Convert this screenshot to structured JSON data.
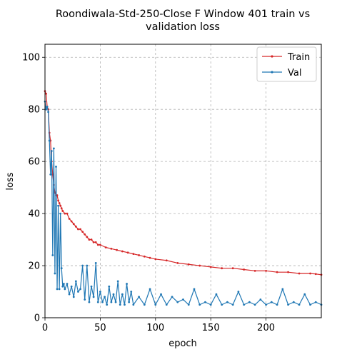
{
  "chart_data": {
    "type": "line",
    "title_lines": [
      "Roondiwala-Std-250-Close F Window 401 train vs",
      "validation loss"
    ],
    "xlabel": "epoch",
    "ylabel": "loss",
    "xlim": [
      0,
      250
    ],
    "ylim": [
      0,
      105
    ],
    "xticks": [
      0,
      50,
      100,
      150,
      200
    ],
    "yticks": [
      0,
      20,
      40,
      60,
      80,
      100
    ],
    "grid": true,
    "legend_position": "top-right",
    "series": [
      {
        "name": "Train",
        "color": "#d62728",
        "points": [
          [
            0,
            87
          ],
          [
            1,
            86
          ],
          [
            2,
            81
          ],
          [
            3,
            80
          ],
          [
            4,
            71
          ],
          [
            5,
            68
          ],
          [
            6,
            60
          ],
          [
            7,
            55
          ],
          [
            8,
            51
          ],
          [
            9,
            48
          ],
          [
            10,
            47
          ],
          [
            11,
            47
          ],
          [
            12,
            45
          ],
          [
            13,
            44
          ],
          [
            14,
            43
          ],
          [
            15,
            42
          ],
          [
            16,
            41
          ],
          [
            18,
            40
          ],
          [
            20,
            40
          ],
          [
            22,
            38
          ],
          [
            24,
            37
          ],
          [
            26,
            36
          ],
          [
            28,
            35
          ],
          [
            30,
            34
          ],
          [
            32,
            34
          ],
          [
            34,
            33
          ],
          [
            36,
            32
          ],
          [
            38,
            31
          ],
          [
            40,
            30
          ],
          [
            42,
            30
          ],
          [
            44,
            29
          ],
          [
            46,
            29
          ],
          [
            48,
            28
          ],
          [
            50,
            28
          ],
          [
            55,
            27
          ],
          [
            60,
            26.5
          ],
          [
            65,
            26
          ],
          [
            70,
            25.5
          ],
          [
            75,
            25
          ],
          [
            80,
            24.5
          ],
          [
            85,
            24
          ],
          [
            90,
            23.5
          ],
          [
            95,
            23
          ],
          [
            100,
            22.5
          ],
          [
            110,
            22
          ],
          [
            120,
            21
          ],
          [
            130,
            20.5
          ],
          [
            140,
            20
          ],
          [
            150,
            19.5
          ],
          [
            160,
            19
          ],
          [
            170,
            19
          ],
          [
            180,
            18.5
          ],
          [
            190,
            18
          ],
          [
            200,
            18
          ],
          [
            210,
            17.5
          ],
          [
            220,
            17.5
          ],
          [
            230,
            17
          ],
          [
            240,
            17
          ],
          [
            245,
            16.8
          ],
          [
            250,
            16.5
          ]
        ]
      },
      {
        "name": "Val",
        "color": "#1f77b4",
        "points": [
          [
            0,
            83
          ],
          [
            1,
            80
          ],
          [
            2,
            81
          ],
          [
            3,
            79
          ],
          [
            4,
            68
          ],
          [
            5,
            55
          ],
          [
            6,
            64
          ],
          [
            7,
            24
          ],
          [
            8,
            65
          ],
          [
            9,
            17
          ],
          [
            10,
            58
          ],
          [
            11,
            11
          ],
          [
            12,
            43
          ],
          [
            13,
            11
          ],
          [
            14,
            40
          ],
          [
            15,
            19
          ],
          [
            16,
            12
          ],
          [
            17,
            13
          ],
          [
            18,
            11
          ],
          [
            20,
            13
          ],
          [
            22,
            9
          ],
          [
            24,
            12
          ],
          [
            26,
            8
          ],
          [
            28,
            14
          ],
          [
            30,
            10
          ],
          [
            32,
            11
          ],
          [
            34,
            20
          ],
          [
            36,
            7
          ],
          [
            38,
            20
          ],
          [
            40,
            6
          ],
          [
            42,
            12
          ],
          [
            44,
            8
          ],
          [
            46,
            21
          ],
          [
            48,
            6
          ],
          [
            50,
            10
          ],
          [
            52,
            6
          ],
          [
            54,
            8
          ],
          [
            56,
            5
          ],
          [
            58,
            12
          ],
          [
            60,
            6
          ],
          [
            62,
            9
          ],
          [
            64,
            6
          ],
          [
            66,
            14
          ],
          [
            68,
            5
          ],
          [
            70,
            9
          ],
          [
            72,
            5
          ],
          [
            74,
            13
          ],
          [
            76,
            6
          ],
          [
            78,
            10
          ],
          [
            80,
            5
          ],
          [
            85,
            8
          ],
          [
            90,
            5
          ],
          [
            95,
            11
          ],
          [
            100,
            5
          ],
          [
            105,
            9
          ],
          [
            110,
            5
          ],
          [
            115,
            8
          ],
          [
            120,
            6
          ],
          [
            125,
            7
          ],
          [
            130,
            5
          ],
          [
            135,
            11
          ],
          [
            140,
            5
          ],
          [
            145,
            6
          ],
          [
            150,
            5
          ],
          [
            155,
            9
          ],
          [
            160,
            5
          ],
          [
            165,
            6
          ],
          [
            170,
            5
          ],
          [
            175,
            10
          ],
          [
            180,
            5
          ],
          [
            185,
            6
          ],
          [
            190,
            5
          ],
          [
            195,
            7
          ],
          [
            200,
            5
          ],
          [
            205,
            6
          ],
          [
            210,
            5
          ],
          [
            215,
            11
          ],
          [
            220,
            5
          ],
          [
            225,
            6
          ],
          [
            230,
            5
          ],
          [
            235,
            9
          ],
          [
            240,
            5
          ],
          [
            245,
            6
          ],
          [
            250,
            5
          ]
        ]
      }
    ]
  }
}
